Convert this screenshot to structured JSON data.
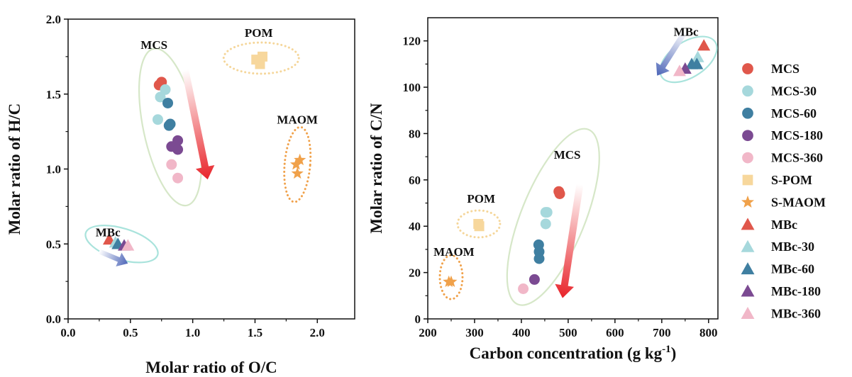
{
  "colors": {
    "MCS": "#e0574b",
    "MCS-30": "#a6d8dc",
    "MCS-60": "#3f7fa1",
    "MCS-180": "#7b4a92",
    "MCS-360": "#f1b7c8",
    "S-POM": "#f7d79c",
    "S-MAOM": "#f0a14a",
    "MBc": "#e0574b",
    "MBc-30": "#a6d8dc",
    "MBc-60": "#3f7fa1",
    "MBc-180": "#7b4a92",
    "MBc-360": "#f1b7c8",
    "mcs_ellipse": "#d6e7c8",
    "mbc_ellipse": "#a9e3dc",
    "pom_ellipse": "#f5d69a",
    "maom_ellipse": "#f0a14a"
  },
  "legend": {
    "position": "right",
    "items": [
      {
        "label": "MCS",
        "shape": "circle",
        "color_key": "MCS"
      },
      {
        "label": "MCS-30",
        "shape": "circle",
        "color_key": "MCS-30"
      },
      {
        "label": "MCS-60",
        "shape": "circle",
        "color_key": "MCS-60"
      },
      {
        "label": "MCS-180",
        "shape": "circle",
        "color_key": "MCS-180"
      },
      {
        "label": "MCS-360",
        "shape": "circle",
        "color_key": "MCS-360"
      },
      {
        "label": "S-POM",
        "shape": "square",
        "color_key": "S-POM"
      },
      {
        "label": "S-MAOM",
        "shape": "star",
        "color_key": "S-MAOM"
      },
      {
        "label": "MBc",
        "shape": "triangle",
        "color_key": "MBc"
      },
      {
        "label": "MBc-30",
        "shape": "triangle",
        "color_key": "MBc-30"
      },
      {
        "label": "MBc-60",
        "shape": "triangle",
        "color_key": "MBc-60"
      },
      {
        "label": "MBc-180",
        "shape": "triangle",
        "color_key": "MBc-180"
      },
      {
        "label": "MBc-360",
        "shape": "triangle",
        "color_key": "MBc-360"
      }
    ]
  },
  "chart_data": [
    {
      "type": "scatter",
      "xlabel": "Molar ratio of O/C",
      "ylabel": "Molar ratio of H/C",
      "xlim": [
        0.0,
        2.3
      ],
      "ylim": [
        0.0,
        2.0
      ],
      "xticks": [
        "0.0",
        "0.5",
        "1.0",
        "1.5",
        "2.0"
      ],
      "yticks": [
        "0.0",
        "0.5",
        "1.0",
        "1.5",
        "2.0"
      ],
      "grid": false,
      "annotations": [
        {
          "text": "MCS",
          "x": 0.69,
          "y": 1.83
        },
        {
          "text": "POM",
          "x": 1.53,
          "y": 1.91
        },
        {
          "text": "MAOM",
          "x": 1.84,
          "y": 1.33
        },
        {
          "text": "MBc",
          "x": 0.32,
          "y": 0.58
        }
      ],
      "series": [
        {
          "name": "MCS",
          "shape": "circle",
          "points": [
            [
              0.73,
              1.56
            ],
            [
              0.75,
              1.58
            ]
          ]
        },
        {
          "name": "MCS-30",
          "shape": "circle",
          "points": [
            [
              0.78,
              1.53
            ],
            [
              0.74,
              1.48
            ],
            [
              0.72,
              1.33
            ]
          ]
        },
        {
          "name": "MCS-60",
          "shape": "circle",
          "points": [
            [
              0.8,
              1.44
            ],
            [
              0.81,
              1.29
            ],
            [
              0.82,
              1.3
            ]
          ]
        },
        {
          "name": "MCS-180",
          "shape": "circle",
          "points": [
            [
              0.88,
              1.19
            ],
            [
              0.83,
              1.15
            ],
            [
              0.88,
              1.13
            ]
          ]
        },
        {
          "name": "MCS-360",
          "shape": "circle",
          "points": [
            [
              0.83,
              1.03
            ],
            [
              0.88,
              0.94
            ]
          ]
        },
        {
          "name": "S-POM",
          "shape": "square",
          "points": [
            [
              1.51,
              1.73
            ],
            [
              1.56,
              1.75
            ],
            [
              1.54,
              1.7
            ]
          ]
        },
        {
          "name": "S-MAOM",
          "shape": "star",
          "points": [
            [
              1.86,
              1.06
            ],
            [
              1.83,
              1.03
            ],
            [
              1.84,
              0.97
            ]
          ]
        },
        {
          "name": "MBc",
          "shape": "triangle",
          "points": [
            [
              0.33,
              0.53
            ]
          ]
        },
        {
          "name": "MBc-30",
          "shape": "triangle",
          "points": [
            [
              0.38,
              0.51
            ]
          ]
        },
        {
          "name": "MBc-60",
          "shape": "triangle",
          "points": [
            [
              0.4,
              0.5
            ]
          ]
        },
        {
          "name": "MBc-180",
          "shape": "triangle",
          "points": [
            [
              0.45,
              0.49
            ]
          ]
        },
        {
          "name": "MBc-360",
          "shape": "triangle",
          "points": [
            [
              0.48,
              0.49
            ]
          ]
        }
      ]
    },
    {
      "type": "scatter",
      "xlabel": "Carbon concentration (g kg",
      "xlabel_sup": "-1",
      "xlabel_end": ")",
      "ylabel": "Molar ratio of C/N",
      "xlim": [
        200,
        820
      ],
      "ylim": [
        0,
        130
      ],
      "xticks": [
        "200",
        "300",
        "400",
        "500",
        "600",
        "700",
        "800"
      ],
      "yticks": [
        "0",
        "20",
        "40",
        "60",
        "80",
        "100",
        "120"
      ],
      "grid": false,
      "annotations": [
        {
          "text": "MBc",
          "x": 752,
          "y": 124
        },
        {
          "text": "MCS",
          "x": 498,
          "y": 71
        },
        {
          "text": "POM",
          "x": 314,
          "y": 52
        },
        {
          "text": "MAOM",
          "x": 256,
          "y": 29
        }
      ],
      "series": [
        {
          "name": "MCS",
          "shape": "circle",
          "points": [
            [
              480,
              55
            ],
            [
              482,
              54
            ]
          ]
        },
        {
          "name": "MCS-30",
          "shape": "circle",
          "points": [
            [
              452,
              46
            ],
            [
              455,
              46
            ],
            [
              452,
              41
            ]
          ]
        },
        {
          "name": "MCS-60",
          "shape": "circle",
          "points": [
            [
              437,
              32
            ],
            [
              438,
              29
            ],
            [
              438,
              26
            ]
          ]
        },
        {
          "name": "MCS-180",
          "shape": "circle",
          "points": [
            [
              428,
              17
            ]
          ]
        },
        {
          "name": "MCS-360",
          "shape": "circle",
          "points": [
            [
              404,
              13
            ]
          ]
        },
        {
          "name": "S-POM",
          "shape": "square",
          "points": [
            [
              308,
              41
            ],
            [
              310,
              40
            ]
          ]
        },
        {
          "name": "S-MAOM",
          "shape": "star",
          "points": [
            [
              245,
              16
            ],
            [
              250,
              16
            ]
          ]
        },
        {
          "name": "MBc",
          "shape": "triangle",
          "points": [
            [
              790,
              118
            ]
          ]
        },
        {
          "name": "MBc-30",
          "shape": "triangle",
          "points": [
            [
              777,
              113
            ]
          ]
        },
        {
          "name": "MBc-60",
          "shape": "triangle",
          "points": [
            [
              764,
              110
            ],
            [
              775,
              110
            ]
          ]
        },
        {
          "name": "MBc-180",
          "shape": "triangle",
          "points": [
            [
              750,
              108
            ]
          ]
        },
        {
          "name": "MBc-360",
          "shape": "triangle",
          "points": [
            [
              738,
              107
            ]
          ]
        }
      ]
    }
  ]
}
